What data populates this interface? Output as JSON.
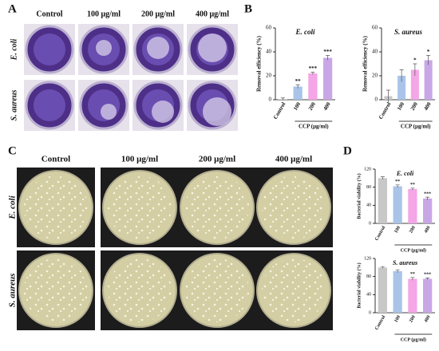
{
  "panel_labels": [
    "A",
    "B",
    "C",
    "D"
  ],
  "panel_a": {
    "columns": [
      "Control",
      "100 μg/ml",
      "200 μg/ml",
      "400 μg/ml"
    ],
    "rows": [
      "E. coli",
      "S. aureus"
    ]
  },
  "panel_c": {
    "columns": [
      "Control",
      "100 μg/ml",
      "200 μg/ml",
      "400 μg/ml"
    ],
    "rows": [
      "E. coli",
      "S. aureus"
    ]
  },
  "chart_data": [
    {
      "type": "bar",
      "title": "E. coli",
      "ylabel": "Removal efficiency (%)",
      "xlabel": "CCP (μg/ml)",
      "categories": [
        "Control",
        "100",
        "200",
        "400"
      ],
      "values": [
        0.5,
        11,
        22,
        35
      ],
      "errors": [
        1,
        1.5,
        1,
        2
      ],
      "colors": [
        "#c8c8c8",
        "#a9c4e8",
        "#f4a6e6",
        "#c9a7e6"
      ],
      "annotations": [
        null,
        "**",
        "***",
        "***"
      ],
      "ylim": [
        0,
        60
      ],
      "yticks": [
        0,
        20,
        40,
        60
      ]
    },
    {
      "type": "bar",
      "title": "S. aureus",
      "ylabel": "Removal efficiency (%)",
      "xlabel": "CCP (μg/ml)",
      "categories": [
        "Control",
        "100",
        "200",
        "400"
      ],
      "values": [
        3,
        20,
        25,
        33
      ],
      "errors": [
        5,
        5,
        5,
        4
      ],
      "colors": [
        "#c8c8c8",
        "#a9c4e8",
        "#f4a6e6",
        "#c9a7e6"
      ],
      "annotations": [
        null,
        null,
        "*",
        "*"
      ],
      "ylim": [
        0,
        60
      ],
      "yticks": [
        0,
        20,
        40,
        60
      ]
    },
    {
      "type": "bar",
      "title": "E. coli",
      "ylabel": "Bacterial viability (%)",
      "xlabel": "CCP (μg/ml)",
      "categories": [
        "Control",
        "100",
        "200",
        "400"
      ],
      "values": [
        100,
        82,
        76,
        55
      ],
      "errors": [
        3,
        3,
        2,
        3
      ],
      "colors": [
        "#c8c8c8",
        "#a9c4e8",
        "#f4a6e6",
        "#c9a7e6"
      ],
      "annotations": [
        null,
        "**",
        "**",
        "***"
      ],
      "ylim": [
        0,
        120
      ],
      "yticks": [
        0,
        40,
        80,
        120
      ]
    },
    {
      "type": "bar",
      "title": "S. aureus",
      "ylabel": "Bacterial viability (%)",
      "xlabel": "CCP (μg/ml)",
      "categories": [
        "Control",
        "100",
        "200",
        "400"
      ],
      "values": [
        100,
        92,
        75,
        75
      ],
      "errors": [
        2,
        3,
        3,
        2
      ],
      "colors": [
        "#c8c8c8",
        "#a9c4e8",
        "#f4a6e6",
        "#c9a7e6"
      ],
      "annotations": [
        null,
        null,
        "**",
        "***"
      ],
      "ylim": [
        0,
        120
      ],
      "yticks": [
        0,
        40,
        80,
        120
      ]
    }
  ]
}
